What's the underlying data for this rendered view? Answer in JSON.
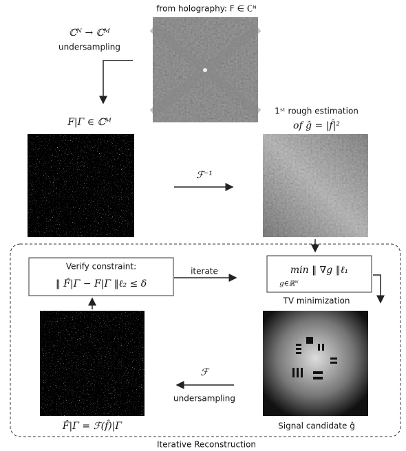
{
  "header": {
    "title": "from holography:  F ∈ ℂᴺ"
  },
  "nodes": [
    {
      "label": "ℂᴺ → ℂᴹ"
    },
    {
      "label": "undersampling"
    },
    {
      "label": "F|Γ ∈ ℂᴹ"
    },
    {
      "label": "1ˢᵗ rough estimation"
    },
    {
      "label": "of  ĝ = |f̂|²"
    },
    {
      "label": "ℱ⁻¹"
    },
    {
      "label": "Verify constraint:"
    },
    {
      "label": "‖ F̂|Γ − F|Γ ‖ℓ₂ ≤ δ"
    },
    {
      "label": "iterate"
    },
    {
      "label": "min  ‖ ∇g ‖ℓ₁"
    },
    {
      "label": "g∈ℝᴺ"
    },
    {
      "label": "TV minimization"
    },
    {
      "label": "ℱ"
    },
    {
      "label": "undersampling"
    },
    {
      "label": "F̂|Γ = ℱ(f̂)|Γ"
    },
    {
      "label": "Signal candidate  ĝ"
    },
    {
      "label": "Iterative Reconstruction"
    }
  ]
}
